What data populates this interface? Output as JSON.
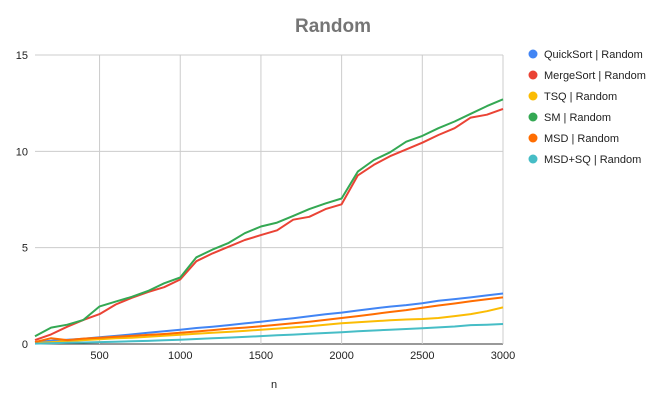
{
  "chart_data": {
    "type": "line",
    "title": "Random",
    "xlabel": "n",
    "ylabel": "",
    "xlim": [
      100,
      3000
    ],
    "ylim": [
      0,
      15
    ],
    "xticks": [
      500,
      1000,
      1500,
      2000,
      2500,
      3000
    ],
    "yticks": [
      0,
      5,
      10,
      15
    ],
    "grid": true,
    "legend_position": "right",
    "x": [
      100,
      200,
      300,
      400,
      500,
      600,
      700,
      800,
      900,
      1000,
      1100,
      1200,
      1300,
      1400,
      1500,
      1600,
      1700,
      1800,
      1900,
      2000,
      2100,
      2200,
      2300,
      2400,
      2500,
      2600,
      2700,
      2800,
      2900,
      3000
    ],
    "series": [
      {
        "name": "QuickSort | Random",
        "color": "#4285f4",
        "values": [
          0.1,
          0.17,
          0.22,
          0.27,
          0.35,
          0.42,
          0.5,
          0.58,
          0.66,
          0.74,
          0.83,
          0.9,
          0.98,
          1.07,
          1.16,
          1.25,
          1.34,
          1.44,
          1.54,
          1.63,
          1.74,
          1.84,
          1.94,
          2.02,
          2.12,
          2.24,
          2.33,
          2.42,
          2.52,
          2.62
        ]
      },
      {
        "name": "MergeSort | Random",
        "color": "#ea4335",
        "values": [
          0.2,
          0.5,
          0.9,
          1.25,
          1.55,
          2.05,
          2.4,
          2.7,
          2.95,
          3.35,
          4.3,
          4.7,
          5.05,
          5.4,
          5.65,
          5.9,
          6.45,
          6.6,
          7.0,
          7.25,
          8.75,
          9.3,
          9.75,
          10.1,
          10.45,
          10.85,
          11.2,
          11.75,
          11.9,
          12.2
        ]
      },
      {
        "name": "TSQ | Random",
        "color": "#fbbc04",
        "values": [
          0.05,
          0.1,
          0.15,
          0.2,
          0.25,
          0.3,
          0.32,
          0.38,
          0.43,
          0.48,
          0.53,
          0.58,
          0.63,
          0.68,
          0.74,
          0.8,
          0.86,
          0.92,
          1.0,
          1.08,
          1.13,
          1.18,
          1.23,
          1.27,
          1.3,
          1.35,
          1.45,
          1.55,
          1.7,
          1.9
        ]
      },
      {
        "name": "SM | Random",
        "color": "#34a853",
        "values": [
          0.4,
          0.85,
          1.0,
          1.25,
          1.95,
          2.2,
          2.45,
          2.75,
          3.15,
          3.45,
          4.5,
          4.9,
          5.25,
          5.75,
          6.1,
          6.3,
          6.65,
          7.0,
          7.3,
          7.55,
          8.95,
          9.55,
          9.95,
          10.5,
          10.8,
          11.2,
          11.55,
          11.95,
          12.35,
          12.7
        ]
      },
      {
        "name": "MSD | Random",
        "color": "#ff6d01",
        "values": [
          0.1,
          0.3,
          0.2,
          0.28,
          0.32,
          0.38,
          0.42,
          0.47,
          0.52,
          0.58,
          0.65,
          0.72,
          0.8,
          0.85,
          0.92,
          1.0,
          1.08,
          1.16,
          1.25,
          1.35,
          1.45,
          1.55,
          1.66,
          1.76,
          1.88,
          2.0,
          2.1,
          2.22,
          2.32,
          2.42
        ]
      },
      {
        "name": "MSD+SQ | Random",
        "color": "#46bdc6",
        "values": [
          0.02,
          0.04,
          0.06,
          0.08,
          0.1,
          0.12,
          0.14,
          0.16,
          0.19,
          0.22,
          0.26,
          0.3,
          0.33,
          0.37,
          0.41,
          0.45,
          0.49,
          0.53,
          0.57,
          0.61,
          0.66,
          0.7,
          0.74,
          0.78,
          0.82,
          0.86,
          0.91,
          0.98,
          1.0,
          1.04
        ]
      }
    ]
  }
}
